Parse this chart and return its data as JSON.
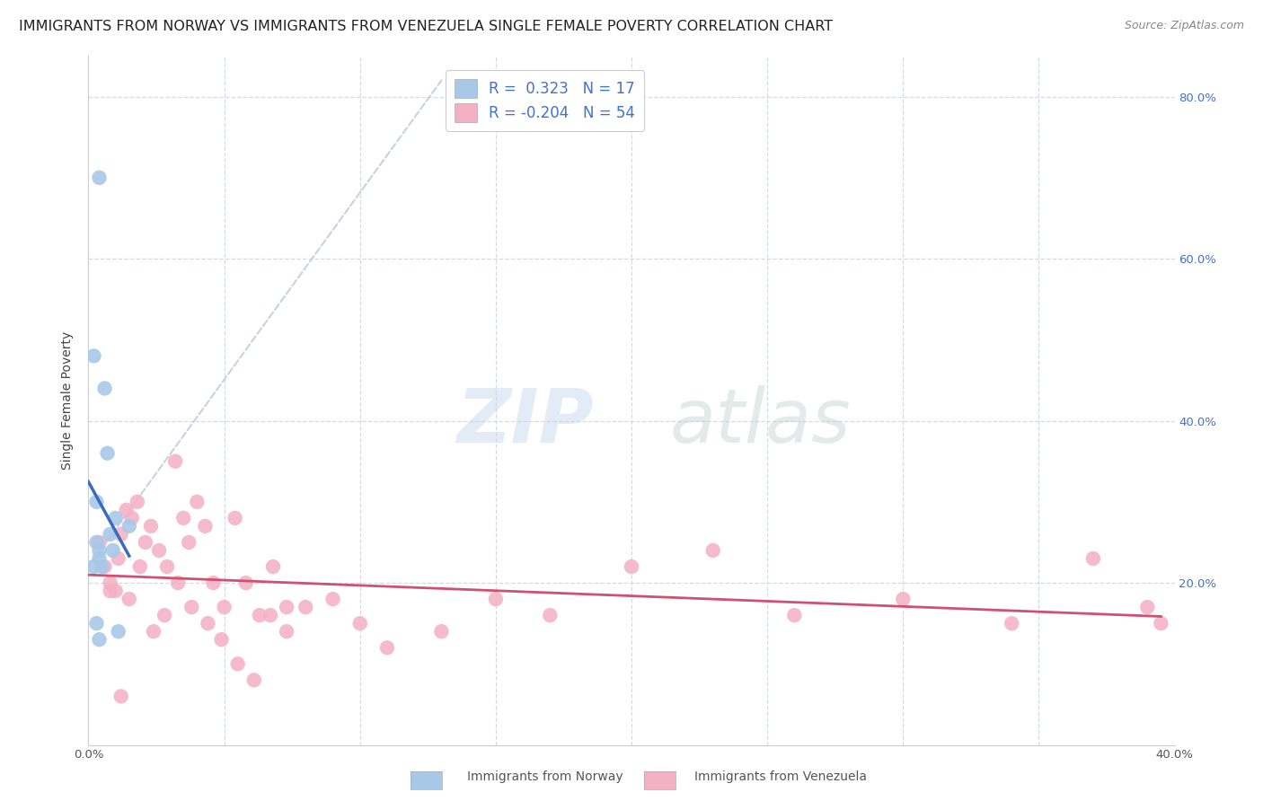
{
  "title": "IMMIGRANTS FROM NORWAY VS IMMIGRANTS FROM VENEZUELA SINGLE FEMALE POVERTY CORRELATION CHART",
  "source": "Source: ZipAtlas.com",
  "ylabel": "Single Female Poverty",
  "xlim": [
    0.0,
    0.4
  ],
  "ylim": [
    0.0,
    0.85
  ],
  "norway_R": 0.323,
  "norway_N": 17,
  "venezuela_R": -0.204,
  "venezuela_N": 54,
  "norway_color": "#a8c8e8",
  "norway_line_color": "#3a6bbf",
  "venezuela_color": "#f4b0c4",
  "venezuela_line_color": "#d05070",
  "diagonal_color": "#b8c8d8",
  "norway_x": [
    0.004,
    0.002,
    0.006,
    0.007,
    0.003,
    0.01,
    0.015,
    0.008,
    0.003,
    0.004,
    0.009,
    0.004,
    0.002,
    0.005,
    0.003,
    0.011,
    0.004
  ],
  "norway_y": [
    0.7,
    0.48,
    0.44,
    0.36,
    0.3,
    0.28,
    0.27,
    0.26,
    0.25,
    0.24,
    0.24,
    0.23,
    0.22,
    0.22,
    0.15,
    0.14,
    0.13
  ],
  "venezuela_x": [
    0.004,
    0.006,
    0.008,
    0.01,
    0.012,
    0.014,
    0.016,
    0.018,
    0.021,
    0.023,
    0.026,
    0.029,
    0.032,
    0.035,
    0.037,
    0.04,
    0.043,
    0.046,
    0.05,
    0.054,
    0.058,
    0.063,
    0.068,
    0.073,
    0.008,
    0.011,
    0.015,
    0.019,
    0.024,
    0.028,
    0.033,
    0.038,
    0.044,
    0.049,
    0.055,
    0.061,
    0.067,
    0.073,
    0.08,
    0.09,
    0.1,
    0.11,
    0.13,
    0.15,
    0.17,
    0.2,
    0.23,
    0.26,
    0.3,
    0.34,
    0.37,
    0.39,
    0.395,
    0.012
  ],
  "venezuela_y": [
    0.25,
    0.22,
    0.2,
    0.19,
    0.26,
    0.29,
    0.28,
    0.3,
    0.25,
    0.27,
    0.24,
    0.22,
    0.35,
    0.28,
    0.25,
    0.3,
    0.27,
    0.2,
    0.17,
    0.28,
    0.2,
    0.16,
    0.22,
    0.17,
    0.19,
    0.23,
    0.18,
    0.22,
    0.14,
    0.16,
    0.2,
    0.17,
    0.15,
    0.13,
    0.1,
    0.08,
    0.16,
    0.14,
    0.17,
    0.18,
    0.15,
    0.12,
    0.14,
    0.18,
    0.16,
    0.22,
    0.24,
    0.16,
    0.18,
    0.15,
    0.23,
    0.17,
    0.15,
    0.06
  ],
  "watermark_zip": "ZIP",
  "watermark_atlas": "atlas",
  "background_color": "#ffffff",
  "grid_color": "#d0d8e4",
  "title_fontsize": 11.5,
  "axis_label_fontsize": 10,
  "tick_fontsize": 9.5,
  "legend_fontsize": 12
}
